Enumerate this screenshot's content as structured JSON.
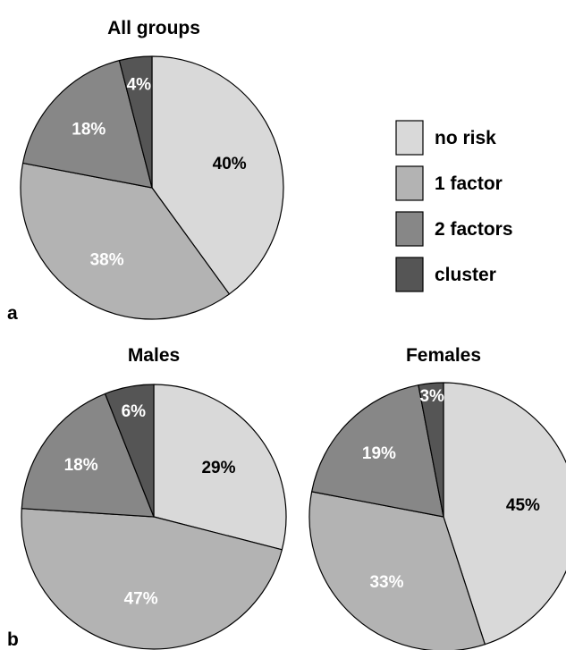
{
  "legend": [
    {
      "label": "no risk",
      "color": "#d9d9d9"
    },
    {
      "label": "1 factor",
      "color": "#b3b3b3"
    },
    {
      "label": "2 factors",
      "color": "#878787"
    },
    {
      "label": "cluster",
      "color": "#555555"
    }
  ],
  "panel_labels": {
    "a": "a",
    "b": "b"
  },
  "chart_data": [
    {
      "type": "pie",
      "title": "All groups",
      "categories": [
        "no risk",
        "1 factor",
        "2 factors",
        "cluster"
      ],
      "values": [
        40,
        38,
        18,
        4
      ],
      "labels": [
        "40%",
        "38%",
        "18%",
        "4%"
      ],
      "label_colors": [
        "#000000",
        "#ffffff",
        "#ffffff",
        "#ffffff"
      ]
    },
    {
      "type": "pie",
      "title": "Males",
      "categories": [
        "no risk",
        "1 factor",
        "2 factors",
        "cluster"
      ],
      "values": [
        29,
        47,
        18,
        6
      ],
      "labels": [
        "29%",
        "47%",
        "18%",
        "6%"
      ],
      "label_colors": [
        "#000000",
        "#ffffff",
        "#ffffff",
        "#ffffff"
      ]
    },
    {
      "type": "pie",
      "title": "Females",
      "categories": [
        "no risk",
        "1 factor",
        "2 factors",
        "cluster"
      ],
      "values": [
        45,
        33,
        19,
        3
      ],
      "labels": [
        "45%",
        "33%",
        "19%",
        "3%"
      ],
      "label_colors": [
        "#000000",
        "#ffffff",
        "#ffffff",
        "#ffffff"
      ]
    }
  ]
}
